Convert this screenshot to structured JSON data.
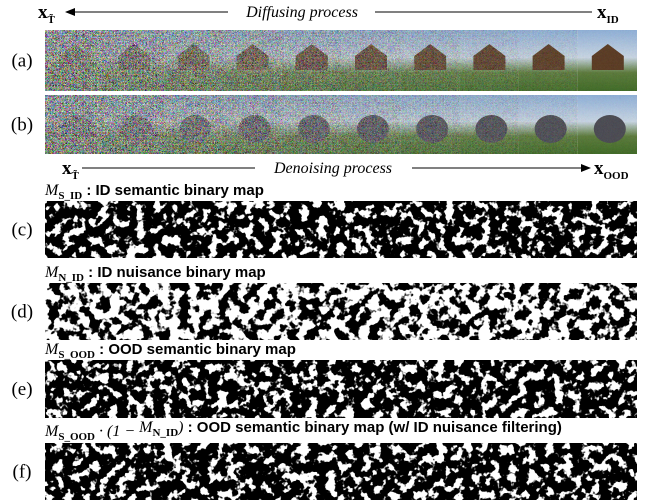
{
  "top_axis": {
    "start": "x",
    "start_sub": "T̃",
    "label": "Diffusing process",
    "end": "x",
    "end_sub": "ID"
  },
  "bottom_axis": {
    "start": "x",
    "start_sub": "T̃",
    "label": "Denoising process",
    "end": "x",
    "end_sub": "OOD"
  },
  "panels": [
    {
      "label": "(a)"
    },
    {
      "label": "(b)"
    },
    {
      "label": "(c)",
      "caption_math": [
        {
          "t": "M",
          "sub": "S_ID"
        }
      ],
      "caption": " : ID semantic binary map"
    },
    {
      "label": "(d)",
      "caption_math": [
        {
          "t": "M",
          "sub": "N_ID"
        }
      ],
      "caption": " : ID nuisance binary map"
    },
    {
      "label": "(e)",
      "caption_math": [
        {
          "t": "M",
          "sub": "S_OOD"
        }
      ],
      "caption": " : OOD semantic binary map"
    },
    {
      "label": "(f)",
      "caption_math": [
        {
          "t": "M",
          "sub": "S_OOD"
        },
        {
          "t": " · (1 − "
        },
        {
          "t": "M",
          "sub": "N_ID"
        },
        {
          "t": ")"
        }
      ],
      "caption": " : OOD semantic binary map (w/ ID nuisance filtering)"
    }
  ]
}
